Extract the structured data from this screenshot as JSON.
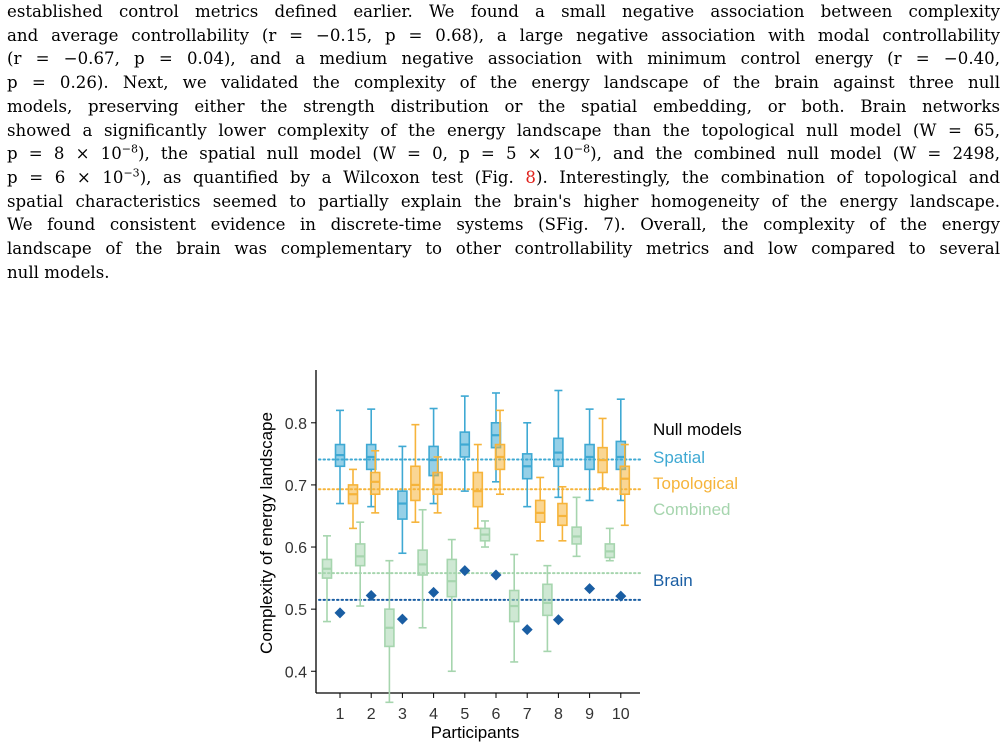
{
  "paragraph": {
    "lines": [
      [
        "established control metrics defined earlier. We found a small negative association between complexity"
      ],
      [
        "and average controllability (r = −0.15, p = 0.68), a large negative association with modal controllability"
      ],
      [
        "(r = −0.67, p = 0.04), and a medium negative association with minimum control energy (r = −0.40,"
      ],
      [
        "p = 0.26). Next, we validated the complexity of the energy landscape of the brain against three null"
      ],
      [
        "models, preserving either the strength distribution or the spatial embedding, or both. Brain networks"
      ],
      [
        "showed a significantly lower complexity of the energy landscape than the topological null model (W = 65,"
      ],
      [
        "p = 8 × 10",
        "−8",
        "), the spatial null model (W = 0, p = 5 × 10",
        "−8",
        "), and the combined null model (W = 2498,"
      ],
      [
        "p = 6 × 10",
        "−3",
        "), as quantified by a Wilcoxon test (Fig. ",
        "8",
        "). Interestingly, the combination of topological and"
      ],
      [
        "spatial characteristics seemed to partially explain the brain's higher homogeneity of the energy landscape."
      ],
      [
        "We found consistent evidence in discrete-time systems (SFig. 7). Overall, the complexity of the energy"
      ],
      [
        "landscape of the brain was complementary to other controllability metrics and low compared to several"
      ],
      [
        "null models."
      ]
    ]
  },
  "chart_data": {
    "type": "box",
    "xlabel": "Participants",
    "ylabel": "Complexity of energy landscape",
    "categories": [
      "1",
      "2",
      "3",
      "4",
      "5",
      "6",
      "7",
      "8",
      "9",
      "10"
    ],
    "yticks": [
      "0.4",
      "0.5",
      "0.6",
      "0.7",
      "0.8"
    ],
    "ylim": [
      0.365,
      0.885
    ],
    "legend": {
      "title": "Null models",
      "placement": "right"
    },
    "colors": {
      "spatial": "#3fa9d3",
      "topological": "#f6b43b",
      "combined": "#a6d5ae",
      "brain": "#1a5ea3"
    },
    "series": [
      {
        "name": "Spatial",
        "key": "spatial",
        "reference_line": 0.741,
        "boxes": [
          {
            "min": 0.67,
            "q1": 0.73,
            "median": 0.748,
            "q3": 0.765,
            "max": 0.82
          },
          {
            "min": 0.665,
            "q1": 0.725,
            "median": 0.745,
            "q3": 0.765,
            "max": 0.822
          },
          {
            "min": 0.59,
            "q1": 0.645,
            "median": 0.67,
            "q3": 0.69,
            "max": 0.762
          },
          {
            "min": 0.67,
            "q1": 0.715,
            "median": 0.74,
            "q3": 0.762,
            "max": 0.823
          },
          {
            "min": 0.69,
            "q1": 0.745,
            "median": 0.765,
            "q3": 0.785,
            "max": 0.843
          },
          {
            "min": 0.705,
            "q1": 0.76,
            "median": 0.78,
            "q3": 0.8,
            "max": 0.848
          },
          {
            "min": 0.665,
            "q1": 0.71,
            "median": 0.73,
            "q3": 0.75,
            "max": 0.8
          },
          {
            "min": 0.68,
            "q1": 0.73,
            "median": 0.752,
            "q3": 0.775,
            "max": 0.852
          },
          {
            "min": 0.675,
            "q1": 0.725,
            "median": 0.745,
            "q3": 0.765,
            "max": 0.822
          },
          {
            "min": 0.675,
            "q1": 0.725,
            "median": 0.745,
            "q3": 0.77,
            "max": 0.838
          }
        ]
      },
      {
        "name": "Topological",
        "key": "topological",
        "reference_line": 0.693,
        "boxes": [
          {
            "min": 0.63,
            "q1": 0.67,
            "median": 0.685,
            "q3": 0.7,
            "max": 0.725
          },
          {
            "min": 0.655,
            "q1": 0.685,
            "median": 0.705,
            "q3": 0.72,
            "max": 0.755
          },
          {
            "min": 0.64,
            "q1": 0.675,
            "median": 0.7,
            "q3": 0.73,
            "max": 0.797
          },
          {
            "min": 0.655,
            "q1": 0.685,
            "median": 0.7,
            "q3": 0.72,
            "max": 0.745
          },
          {
            "min": 0.63,
            "q1": 0.665,
            "median": 0.69,
            "q3": 0.72,
            "max": 0.765
          },
          {
            "min": 0.685,
            "q1": 0.725,
            "median": 0.745,
            "q3": 0.765,
            "max": 0.82
          },
          {
            "min": 0.61,
            "q1": 0.64,
            "median": 0.655,
            "q3": 0.675,
            "max": 0.712
          },
          {
            "min": 0.61,
            "q1": 0.635,
            "median": 0.65,
            "q3": 0.67,
            "max": 0.697
          },
          {
            "min": 0.695,
            "q1": 0.72,
            "median": 0.74,
            "q3": 0.76,
            "max": 0.807
          },
          {
            "min": 0.635,
            "q1": 0.685,
            "median": 0.71,
            "q3": 0.73,
            "max": 0.765
          }
        ]
      },
      {
        "name": "Combined",
        "key": "combined",
        "reference_line": 0.558,
        "boxes": [
          {
            "min": 0.48,
            "q1": 0.55,
            "median": 0.565,
            "q3": 0.58,
            "max": 0.618
          },
          {
            "min": 0.505,
            "q1": 0.57,
            "median": 0.585,
            "q3": 0.605,
            "max": 0.64
          },
          {
            "min": 0.35,
            "q1": 0.44,
            "median": 0.47,
            "q3": 0.5,
            "max": 0.578
          },
          {
            "min": 0.47,
            "q1": 0.555,
            "median": 0.572,
            "q3": 0.595,
            "max": 0.66
          },
          {
            "min": 0.4,
            "q1": 0.52,
            "median": 0.545,
            "q3": 0.58,
            "max": 0.612
          },
          {
            "min": 0.6,
            "q1": 0.61,
            "median": 0.62,
            "q3": 0.63,
            "max": 0.642
          },
          {
            "min": 0.415,
            "q1": 0.48,
            "median": 0.505,
            "q3": 0.53,
            "max": 0.588
          },
          {
            "min": 0.432,
            "q1": 0.49,
            "median": 0.51,
            "q3": 0.54,
            "max": 0.57
          },
          {
            "min": 0.585,
            "q1": 0.605,
            "median": 0.617,
            "q3": 0.632,
            "max": 0.68
          },
          {
            "min": 0.578,
            "q1": 0.583,
            "median": 0.593,
            "q3": 0.605,
            "max": 0.63
          }
        ]
      },
      {
        "name": "Brain",
        "key": "brain",
        "reference_line": 0.515,
        "points": [
          0.494,
          0.522,
          0.484,
          0.527,
          0.562,
          0.555,
          0.467,
          0.483,
          0.533,
          0.521
        ]
      }
    ]
  }
}
